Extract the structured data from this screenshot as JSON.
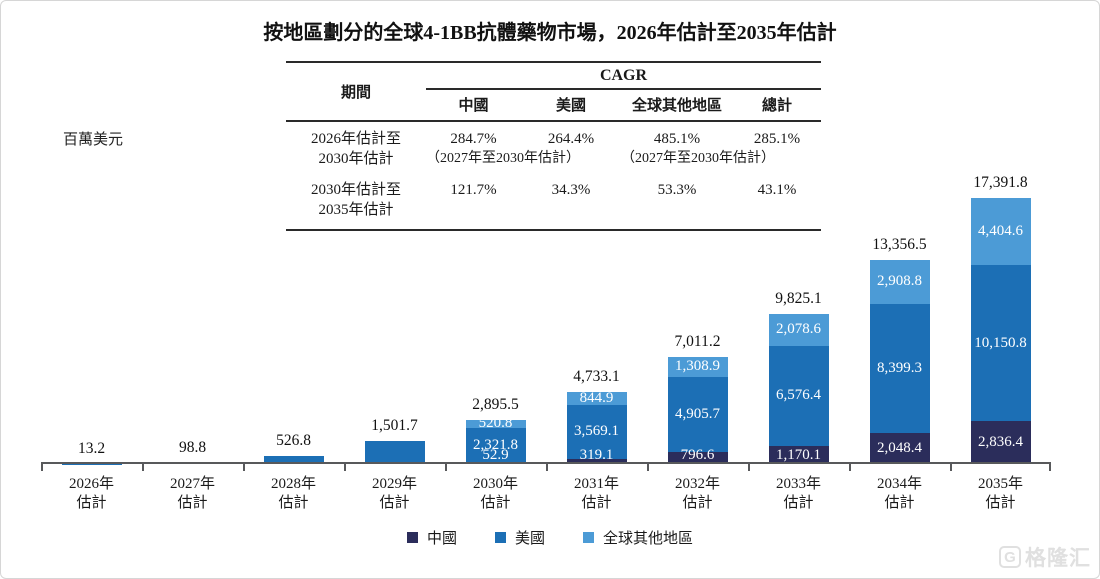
{
  "page": {
    "title": "按地區劃分的全球4-1BB抗體藥物市場，2026年估計至2035年估計",
    "unit_label": "百萬美元",
    "watermark": "格隆汇"
  },
  "table": {
    "period_header": "期間",
    "cagr_header": "CAGR",
    "columns": [
      "中國",
      "美國",
      "全球其他地區",
      "總計"
    ],
    "rows": [
      {
        "period_line1": "2026年估計至",
        "period_line2": "2030年估計",
        "values": [
          "284.7%",
          "264.4%",
          "485.1%",
          "285.1%"
        ],
        "notes": [
          "（2027年至2030年估計）",
          "",
          "（2027年至2030年估計）",
          ""
        ]
      },
      {
        "period_line1": "2030年估計至",
        "period_line2": "2035年估計",
        "values": [
          "121.7%",
          "34.3%",
          "53.3%",
          "43.1%"
        ],
        "notes": [
          "",
          "",
          "",
          ""
        ]
      }
    ]
  },
  "chart_data": {
    "type": "stacked-bar",
    "title": "按地區劃分的全球4-1BB抗體藥物市場，2026年估計至2035年估計",
    "ylabel": "百萬美元",
    "ylim": [
      0,
      17391.8
    ],
    "grid": false,
    "legend_position": "bottom-center",
    "axis_color": "#58595b",
    "categories": [
      {
        "year": "2026年",
        "sub": "估計"
      },
      {
        "year": "2027年",
        "sub": "估計"
      },
      {
        "year": "2028年",
        "sub": "估計"
      },
      {
        "year": "2029年",
        "sub": "估計"
      },
      {
        "year": "2030年",
        "sub": "估計"
      },
      {
        "year": "2031年",
        "sub": "估計"
      },
      {
        "year": "2032年",
        "sub": "估計"
      },
      {
        "year": "2033年",
        "sub": "估計"
      },
      {
        "year": "2034年",
        "sub": "估計"
      },
      {
        "year": "2035年",
        "sub": "估計"
      }
    ],
    "totals": [
      13.2,
      98.8,
      526.8,
      1501.7,
      2895.5,
      4733.1,
      7011.2,
      9825.1,
      13356.5,
      17391.8
    ],
    "series": [
      {
        "name": "中國",
        "key": "china",
        "color": "#2b2d5b",
        "values": [
          null,
          null,
          null,
          null,
          52.9,
          319.1,
          796.6,
          1170.1,
          2048.4,
          2836.4
        ]
      },
      {
        "name": "美國",
        "key": "us",
        "color": "#1c6fb5",
        "values": [
          null,
          null,
          null,
          null,
          2321.8,
          3569.1,
          4905.7,
          6576.4,
          8399.3,
          10150.8
        ]
      },
      {
        "name": "全球其他地區",
        "key": "rest-of-world",
        "color": "#4c9bd6",
        "values": [
          null,
          null,
          null,
          null,
          520.8,
          844.9,
          1308.9,
          2078.6,
          2908.8,
          4404.6
        ]
      }
    ]
  }
}
